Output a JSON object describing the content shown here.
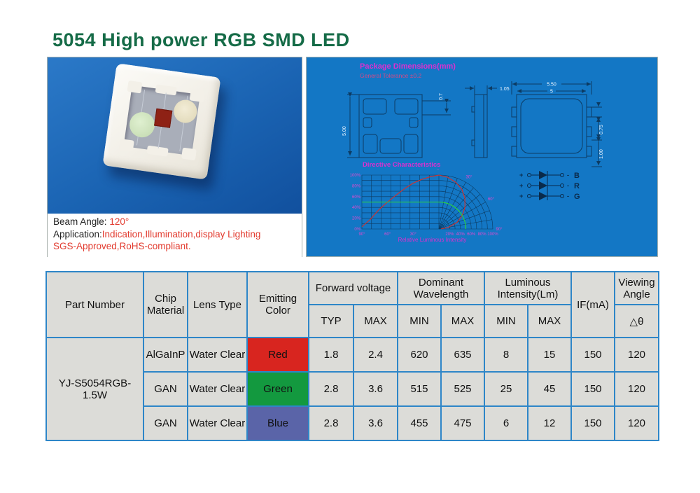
{
  "page": {
    "title": "5054 High power RGB SMD LED"
  },
  "photo": {
    "beam_label": "Beam Angle: ",
    "beam_value": "120°",
    "app_label": "Application:",
    "app_value": "Indication,Illumination,display Lighting",
    "compliance": "SGS-Approved,RoHS-compliant."
  },
  "diagram": {
    "title": "Package Dimensions(mm)",
    "subtitle": "General Tolerance ±0.2",
    "dims": {
      "body_height": "5.00",
      "pad_offset": "0.7",
      "thickness": "1.05",
      "outer_width": "5.50",
      "inner_width": "5",
      "pad_height": "0.75",
      "pad_pitch": "1.00"
    },
    "schematic": {
      "plus": "+",
      "minus": "-",
      "channels": [
        "B",
        "R",
        "G"
      ]
    },
    "chart_title": "Directive Characteristics",
    "chart_xlabel": "Relative Luminous Intensity"
  },
  "chart_data": {
    "type": "line",
    "title": "Directive Characteristics",
    "xlabel": "Relative Luminous Intensity",
    "y_ticks": [
      "100%",
      "80%",
      "60%",
      "40%",
      "20%",
      "0%"
    ],
    "rect_angle_ticks": [
      "90°",
      "60°",
      "30°"
    ],
    "radial_ticks": [
      "20%",
      "40%",
      "60%",
      "80%",
      "100%"
    ],
    "polar_angle_ticks": [
      "0°",
      "30°",
      "60°",
      "90°"
    ],
    "beam_angle_deg": 120,
    "series": [
      {
        "name": "radiation-pattern",
        "color": "#d83028",
        "angles_deg": [
          0,
          10,
          20,
          30,
          40,
          50,
          60,
          70,
          80,
          90
        ],
        "relative_intensity": [
          1.0,
          0.97,
          0.92,
          0.85,
          0.75,
          0.63,
          0.5,
          0.36,
          0.18,
          0.04
        ]
      },
      {
        "name": "half-intensity-reference",
        "color": "#2fe02f",
        "relative_intensity": 0.5
      }
    ]
  },
  "table": {
    "headers": {
      "part_number": "Part Number",
      "chip_material": "Chip Material",
      "lens_type": "Lens Type",
      "emitting_color": "Emitting Color",
      "forward_voltage": "Forward voltage",
      "dominant_wavelength": "Dominant Wavelength",
      "luminous_intensity": "Luminous Intensity(Lm)",
      "if_ma": "IF(mA)",
      "viewing_angle": "Viewing Angle",
      "viewing_symbol": "△θ",
      "typ": "TYP",
      "max": "MAX",
      "min": "MIN"
    },
    "part_number": "YJ-S5054RGB-1.5W",
    "rows": [
      {
        "chip_material": "AlGaInP",
        "lens_type": "Water Clear",
        "emitting_color": "Red",
        "color_hex": "#d8251f",
        "vf_typ": "1.8",
        "vf_max": "2.4",
        "wl_min": "620",
        "wl_max": "635",
        "lm_min": "8",
        "lm_max": "15",
        "if_ma": "150",
        "viewing_angle": "120"
      },
      {
        "chip_material": "GAN",
        "lens_type": "Water Clear",
        "emitting_color": "Green",
        "color_hex": "#13993f",
        "vf_typ": "2.8",
        "vf_max": "3.6",
        "wl_min": "515",
        "wl_max": "525",
        "lm_min": "25",
        "lm_max": "45",
        "if_ma": "150",
        "viewing_angle": "120"
      },
      {
        "chip_material": "GAN",
        "lens_type": "Water Clear",
        "emitting_color": "Blue",
        "color_hex": "#5a64a8",
        "vf_typ": "2.8",
        "vf_max": "3.6",
        "wl_min": "455",
        "wl_max": "475",
        "lm_min": "6",
        "lm_max": "12",
        "if_ma": "150",
        "viewing_angle": "120"
      }
    ]
  },
  "colors": {
    "title_green": "#156b47",
    "photo_panel_bg": "#1a63b2",
    "diagram_panel_bg": "#1377c5",
    "table_grid_blue": "#2e86c8",
    "magenta": "#dd2fd0",
    "red_text": "#e23a2e"
  }
}
